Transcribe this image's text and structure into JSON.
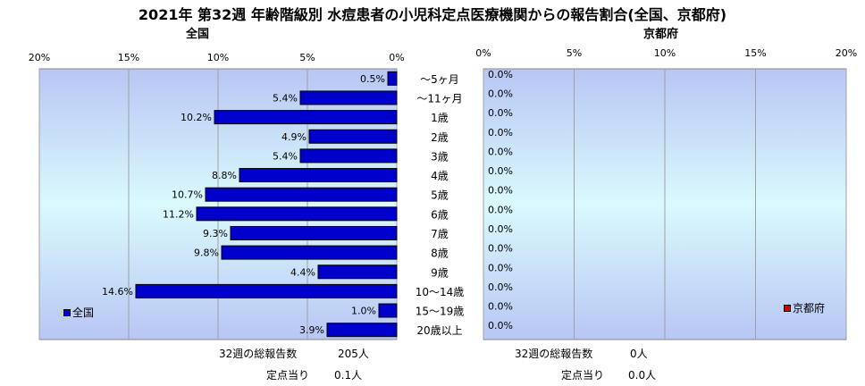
{
  "title": "2021年 第32週 年齢階級別 水痘患者の小児科定点医療機関からの報告割合(全国、京都府)",
  "colors": {
    "zenkoku": "#0000cc",
    "kyoto": "#cc0000",
    "plot_top": "#b8c6f4",
    "plot_mid": "#dafafd",
    "plot_bottom": "#b8c6f4"
  },
  "chart_data": [
    {
      "type": "bar",
      "orientation": "horizontal",
      "direction": "right-to-left",
      "title": "全国",
      "legend": "全国",
      "legend_position": "bottom-left",
      "xlim": [
        0,
        20
      ],
      "ticks": [
        "20%",
        "15%",
        "10%",
        "5%",
        "0%"
      ],
      "tick_values": [
        20,
        15,
        10,
        5,
        0
      ],
      "categories": [
        "～5ヶ月",
        "～11ヶ月",
        "1歳",
        "2歳",
        "3歳",
        "4歳",
        "5歳",
        "6歳",
        "7歳",
        "8歳",
        "9歳",
        "10～14歳",
        "15～19歳",
        "20歳以上"
      ],
      "values": [
        0.5,
        5.4,
        10.2,
        4.9,
        5.4,
        8.8,
        10.7,
        11.2,
        9.3,
        9.8,
        4.4,
        14.6,
        1.0,
        3.9
      ],
      "labels": [
        "0.5%",
        "5.4%",
        "10.2%",
        "4.9%",
        "5.4%",
        "8.8%",
        "10.7%",
        "11.2%",
        "9.3%",
        "9.8%",
        "4.4%",
        "14.6%",
        "1.0%",
        "3.9%"
      ],
      "grid": true
    },
    {
      "type": "bar",
      "orientation": "horizontal",
      "direction": "left-to-right",
      "title": "京都府",
      "legend": "京都府",
      "legend_position": "bottom-right",
      "xlim": [
        0,
        20
      ],
      "ticks": [
        "0%",
        "5%",
        "10%",
        "15%",
        "20%"
      ],
      "tick_values": [
        0,
        5,
        10,
        15,
        20
      ],
      "categories": [
        "～5ヶ月",
        "～11ヶ月",
        "1歳",
        "2歳",
        "3歳",
        "4歳",
        "5歳",
        "6歳",
        "7歳",
        "8歳",
        "9歳",
        "10～14歳",
        "15～19歳",
        "20歳以上"
      ],
      "values": [
        0,
        0,
        0,
        0,
        0,
        0,
        0,
        0,
        0,
        0,
        0,
        0,
        0,
        0
      ],
      "labels": [
        "0.0%",
        "0.0%",
        "0.0%",
        "0.0%",
        "0.0%",
        "0.0%",
        "0.0%",
        "0.0%",
        "0.0%",
        "0.0%",
        "0.0%",
        "0.0%",
        "0.0%",
        "0.0%"
      ],
      "grid": true
    }
  ],
  "stats": {
    "zenkoku": {
      "total_label": "32週の総報告数",
      "total_value": "205人",
      "per_label": "定点当り",
      "per_value": "0.1人"
    },
    "kyoto": {
      "total_label": "32週の総報告数",
      "total_value": "0人",
      "per_label": "定点当り",
      "per_value": "0.0人"
    }
  }
}
